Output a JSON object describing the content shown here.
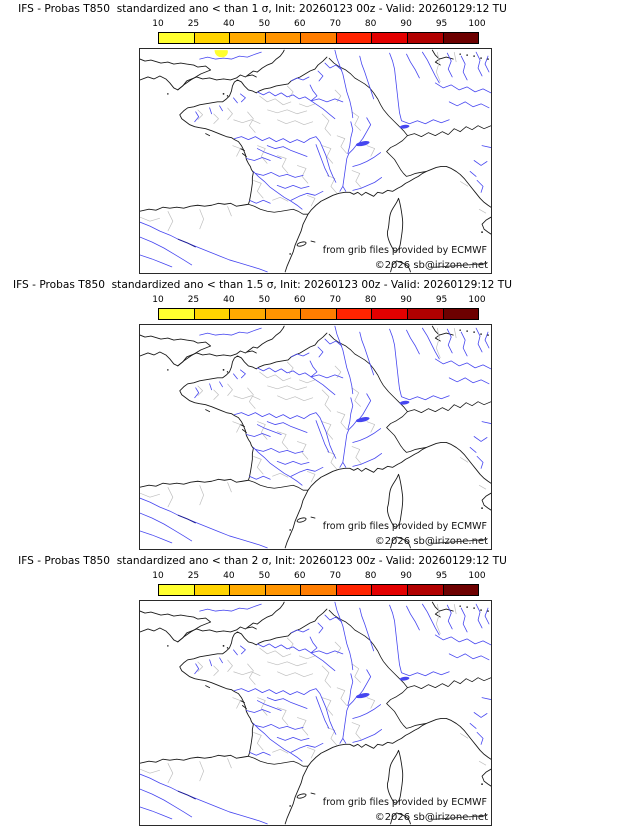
{
  "colorbar": {
    "tick_labels": [
      "10",
      "25",
      "40",
      "50",
      "60",
      "70",
      "80",
      "90",
      "95",
      "100"
    ],
    "segment_colors": [
      "#ffff2f",
      "#ffd400",
      "#ffaa00",
      "#ff9400",
      "#ff7d00",
      "#ff2400",
      "#e30000",
      "#b10000",
      "#6d0000"
    ]
  },
  "panels": [
    {
      "title": "IFS - Probas T850  standardized ano < than 1 σ, Init: 20260123 00z - Valid: 20260129:12 TU",
      "has_highlight": true
    },
    {
      "title": "IFS - Probas T850  standardized ano < than 1.5 σ, Init: 20260123 00z - Valid: 20260129:12 TU",
      "has_highlight": false
    },
    {
      "title": "IFS - Probas T850  standardized ano < than 2 σ, Init: 20260123 00z - Valid: 20260129:12 TU",
      "has_highlight": false
    }
  ],
  "annotations": {
    "credit": "from grib files provided by ECMWF",
    "copyright": "©2026 sb@irizone.net"
  },
  "map_colors": {
    "coastline": "#1a1a1a",
    "departments": "#bfbfbf",
    "rivers": "#4646f0"
  }
}
